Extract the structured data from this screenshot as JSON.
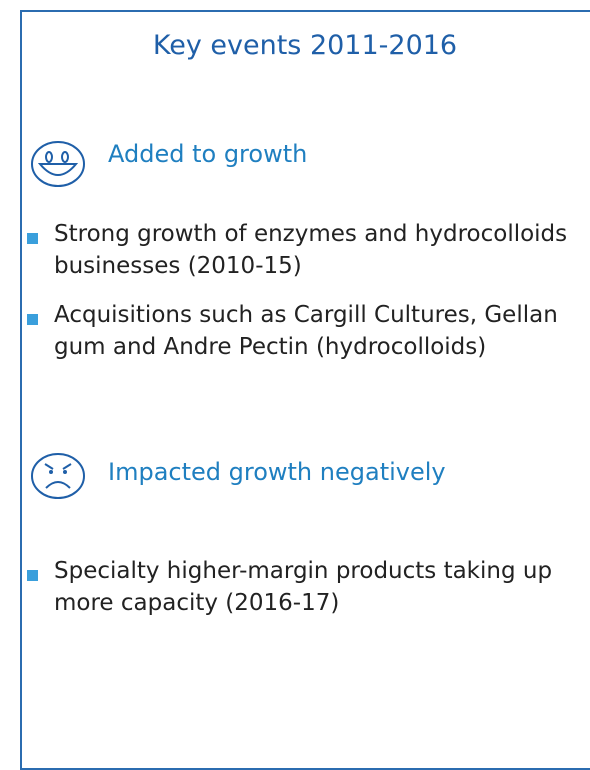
{
  "title": "Key events 2011-2016",
  "sections": [
    {
      "heading": "Added to growth",
      "items": [
        "Strong growth of enzymes and hydrocolloids businesses (2010-15)",
        "Acquisitions such as Cargill Cultures, Gellan gum and Andre Pectin (hydrocolloids)"
      ]
    },
    {
      "heading": "Impacted growth negatively",
      "items": [
        "Specialty higher-margin products taking up more capacity (2016-17)"
      ]
    }
  ]
}
